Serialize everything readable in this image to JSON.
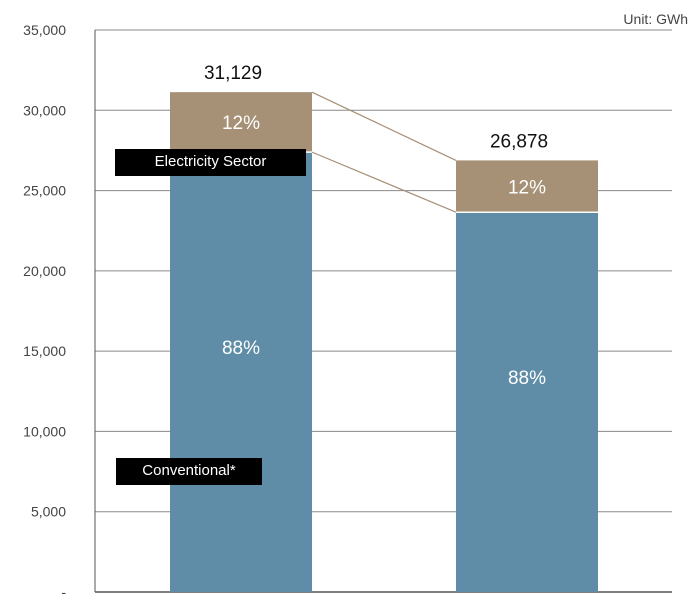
{
  "chart_data": {
    "type": "bar",
    "stacked": true,
    "unit_label": "Unit: GWh",
    "categories": [
      "",
      ""
    ],
    "totals": [
      31129,
      26878
    ],
    "total_labels": [
      "31,129",
      "26,878"
    ],
    "series": [
      {
        "name": "Conventional*",
        "values": [
          27394,
          23653
        ],
        "labels": [
          "88%",
          "88%"
        ],
        "color": "#5f8da8"
      },
      {
        "name": "Electricity Sector",
        "values": [
          3735,
          3225
        ],
        "labels": [
          "12%",
          "12%"
        ],
        "color": "#a69076"
      }
    ],
    "yticks": [
      0,
      5000,
      10000,
      15000,
      20000,
      25000,
      30000,
      35000
    ],
    "ytick_labels": [
      "-",
      "5,000",
      "10,000",
      "15,000",
      "20,000",
      "25,000",
      "30,000",
      "35,000"
    ],
    "ylim": [
      0,
      35000
    ],
    "grid": true,
    "title": "",
    "xlabel": "",
    "ylabel": ""
  }
}
